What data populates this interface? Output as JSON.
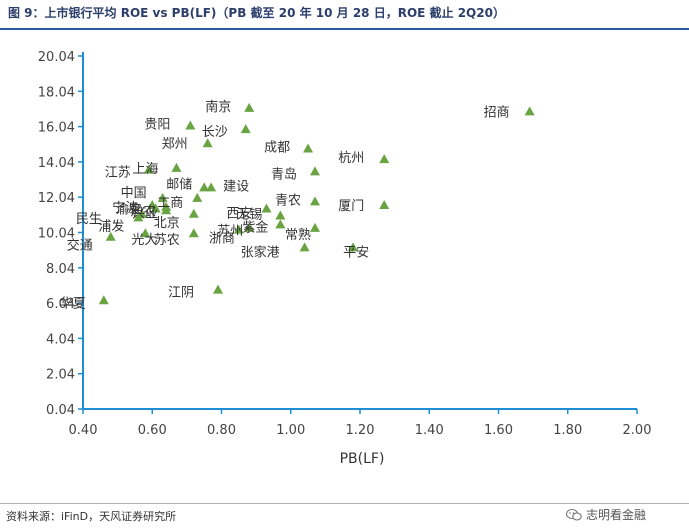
{
  "header": {
    "title": "图 9：上市银行平均 ROE vs PB(LF)（PB 截至 20 年 10 月 28 日，ROE 截止 2Q20）"
  },
  "footer": {
    "source": "资料来源：iFinD，天风证券研究所",
    "brand": "志明看金融"
  },
  "icons": {
    "brand_icon": "wechat-icon"
  },
  "colors": {
    "marker": "#6aa342",
    "axis": "#1f8dd6",
    "title": "#2c3e6b"
  },
  "chart_data": {
    "type": "scatter",
    "title": "上市银行平均 ROE vs PB(LF)",
    "xlabel": "PB(LF)",
    "ylabel": "",
    "xlim": [
      0.4,
      2.0
    ],
    "ylim": [
      0.04,
      20.04
    ],
    "x_ticks": [
      "0.40",
      "0.60",
      "0.80",
      "1.00",
      "1.20",
      "1.40",
      "1.60",
      "1.80",
      "2.00"
    ],
    "y_ticks": [
      "0.04",
      "2.04",
      "4.04",
      "6.04",
      "8.04",
      "10.04",
      "12.04",
      "14.04",
      "16.04",
      "18.04",
      "20.04"
    ],
    "points": [
      {
        "label": "招商",
        "x": 1.69,
        "y": 16.9
      },
      {
        "label": "南京",
        "x": 0.88,
        "y": 17.1
      },
      {
        "label": "贵阳",
        "x": 0.71,
        "y": 16.1
      },
      {
        "label": "长沙",
        "x": 0.87,
        "y": 15.9
      },
      {
        "label": "郑州",
        "x": 0.76,
        "y": 15.1
      },
      {
        "label": "成都",
        "x": 1.05,
        "y": 14.8
      },
      {
        "label": "杭州",
        "x": 1.27,
        "y": 14.2
      },
      {
        "label": "上海",
        "x": 0.67,
        "y": 13.7
      },
      {
        "label": "江苏",
        "x": 0.59,
        "y": 13.6
      },
      {
        "label": "青岛",
        "x": 1.07,
        "y": 13.5
      },
      {
        "label": "建设",
        "x": 0.77,
        "y": 12.6
      },
      {
        "label": "邮储",
        "x": 0.75,
        "y": 12.6
      },
      {
        "label": "中国",
        "x": 0.63,
        "y": 12.0
      },
      {
        "label": "工商",
        "x": 0.73,
        "y": 12.0
      },
      {
        "label": "青农",
        "x": 1.07,
        "y": 11.8
      },
      {
        "label": "厦门",
        "x": 1.27,
        "y": 11.6
      },
      {
        "label": "宁波",
        "x": 0.6,
        "y": 11.6
      },
      {
        "label": "北京",
        "x": 0.72,
        "y": 11.1
      },
      {
        "label": "兴业",
        "x": 0.64,
        "y": 11.3
      },
      {
        "label": "民生",
        "x": 0.57,
        "y": 11.1
      },
      {
        "label": "无锡",
        "x": 0.97,
        "y": 11.0
      },
      {
        "label": "西安",
        "x": 0.93,
        "y": 11.4
      },
      {
        "label": "浦发",
        "x": 0.56,
        "y": 10.9
      },
      {
        "label": "渝农",
        "x": 0.61,
        "y": 11.4
      },
      {
        "label": "沪农",
        "x": 0.64,
        "y": 11.5
      },
      {
        "label": "苏州",
        "x": 0.88,
        "y": 10.3
      },
      {
        "label": "紫金",
        "x": 0.97,
        "y": 10.5
      },
      {
        "label": "浙商",
        "x": 0.85,
        "y": 10.2
      },
      {
        "label": "常熟",
        "x": 1.07,
        "y": 10.3
      },
      {
        "label": "光大",
        "x": 0.58,
        "y": 10.0
      },
      {
        "label": "苏农",
        "x": 0.72,
        "y": 10.0
      },
      {
        "label": "交通",
        "x": 0.48,
        "y": 9.8
      },
      {
        "label": "平安",
        "x": 1.18,
        "y": 9.2
      },
      {
        "label": "张家港",
        "x": 1.04,
        "y": 9.2
      },
      {
        "label": "江阴",
        "x": 0.79,
        "y": 6.8
      },
      {
        "label": "华夏",
        "x": 0.46,
        "y": 6.2
      }
    ]
  }
}
